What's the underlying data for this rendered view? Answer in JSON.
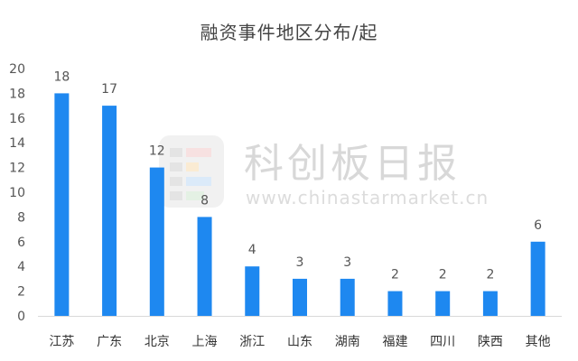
{
  "chart_data": {
    "type": "bar",
    "title": "融资事件地区分布/起",
    "categories": [
      "江苏",
      "广东",
      "北京",
      "上海",
      "浙江",
      "山东",
      "湖南",
      "福建",
      "四川",
      "陕西",
      "其他"
    ],
    "values": [
      18,
      17,
      12,
      8,
      4,
      3,
      3,
      2,
      2,
      2,
      6
    ],
    "ylim": [
      0,
      20
    ],
    "yticks": [
      "0",
      "2",
      "4",
      "6",
      "8",
      "10",
      "12",
      "14",
      "16",
      "18",
      "20"
    ],
    "grid": false,
    "bar_color": "#1e88f0"
  },
  "watermark": {
    "name": "科创板日报",
    "url": "www.chinastarmarket.cn"
  }
}
